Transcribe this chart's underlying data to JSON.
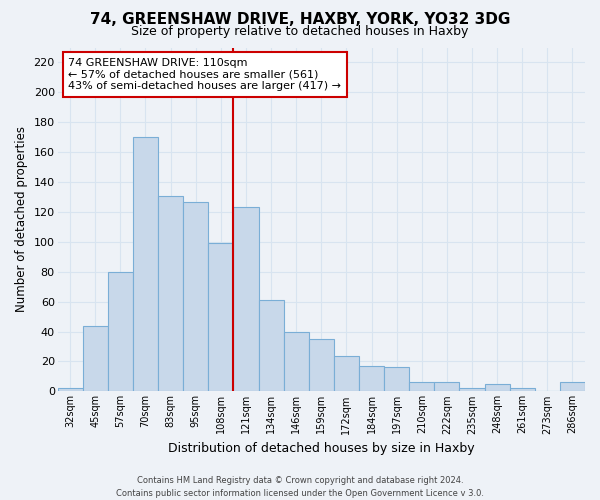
{
  "title": "74, GREENSHAW DRIVE, HAXBY, YORK, YO32 3DG",
  "subtitle": "Size of property relative to detached houses in Haxby",
  "xlabel": "Distribution of detached houses by size in Haxby",
  "ylabel": "Number of detached properties",
  "footer_line1": "Contains HM Land Registry data © Crown copyright and database right 2024.",
  "footer_line2": "Contains public sector information licensed under the Open Government Licence v 3.0.",
  "annotation_line1": "74 GREENSHAW DRIVE: 110sqm",
  "annotation_line2": "← 57% of detached houses are smaller (561)",
  "annotation_line3": "43% of semi-detached houses are larger (417) →",
  "bar_color": "#c8d8ea",
  "bar_edge_color": "#7aaed6",
  "ref_line_color": "#cc0000",
  "categories": [
    "32sqm",
    "45sqm",
    "57sqm",
    "70sqm",
    "83sqm",
    "95sqm",
    "108sqm",
    "121sqm",
    "134sqm",
    "146sqm",
    "159sqm",
    "172sqm",
    "184sqm",
    "197sqm",
    "210sqm",
    "222sqm",
    "235sqm",
    "248sqm",
    "261sqm",
    "273sqm",
    "286sqm"
  ],
  "values": [
    2,
    44,
    80,
    170,
    131,
    127,
    99,
    123,
    61,
    40,
    35,
    24,
    17,
    16,
    6,
    6,
    2,
    5,
    2,
    0,
    6
  ],
  "ylim": [
    0,
    230
  ],
  "yticks": [
    0,
    20,
    40,
    60,
    80,
    100,
    120,
    140,
    160,
    180,
    200,
    220
  ],
  "bg_color": "#eef2f7",
  "grid_color": "#d8e4f0",
  "plot_bg_color": "#eef2f7"
}
